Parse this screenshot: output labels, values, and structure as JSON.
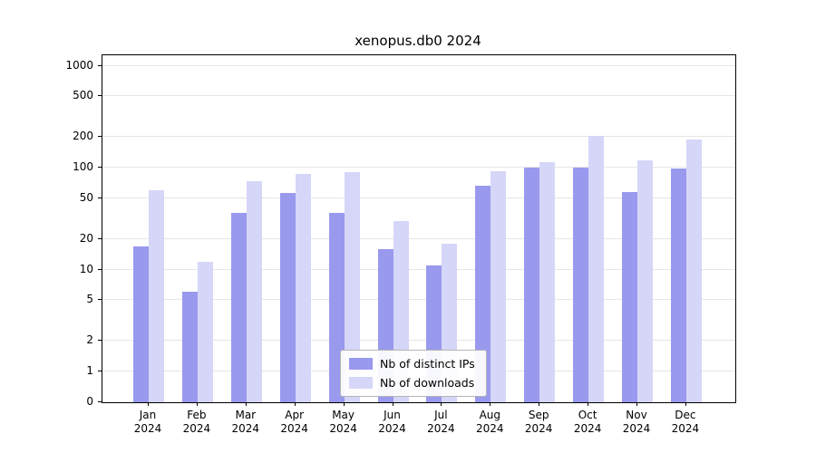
{
  "title": "xenopus.db0 2024",
  "chart_data": {
    "type": "bar",
    "title": "xenopus.db0 2024",
    "categories": [
      "Jan",
      "Feb",
      "Mar",
      "Apr",
      "May",
      "Jun",
      "Jul",
      "Aug",
      "Sep",
      "Oct",
      "Nov",
      "Dec"
    ],
    "year": "2024",
    "series": [
      {
        "name": "Nb of distinct IPs",
        "color": "#9999ee",
        "values": [
          17,
          6,
          36,
          56,
          36,
          16,
          11,
          66,
          100,
          100,
          57,
          99
        ]
      },
      {
        "name": "Nb of downloads",
        "color": "#d6d6f8",
        "values": [
          60,
          12,
          73,
          86,
          90,
          30,
          18,
          93,
          112,
          205,
          117,
          189
        ]
      }
    ],
    "yscale": "log (0 pinned at baseline)",
    "y_ticks": [
      0,
      1,
      2,
      5,
      10,
      20,
      50,
      100,
      200,
      500,
      1000
    ],
    "ylim": [
      0,
      1300
    ],
    "xlabel": "",
    "ylabel": "",
    "grid": "horizontal",
    "legend_position": "lower center inside plot"
  },
  "legend": {
    "items": [
      {
        "label": "Nb of distinct IPs",
        "color": "#9999ee"
      },
      {
        "label": "Nb of downloads",
        "color": "#d6d6f8"
      }
    ]
  }
}
